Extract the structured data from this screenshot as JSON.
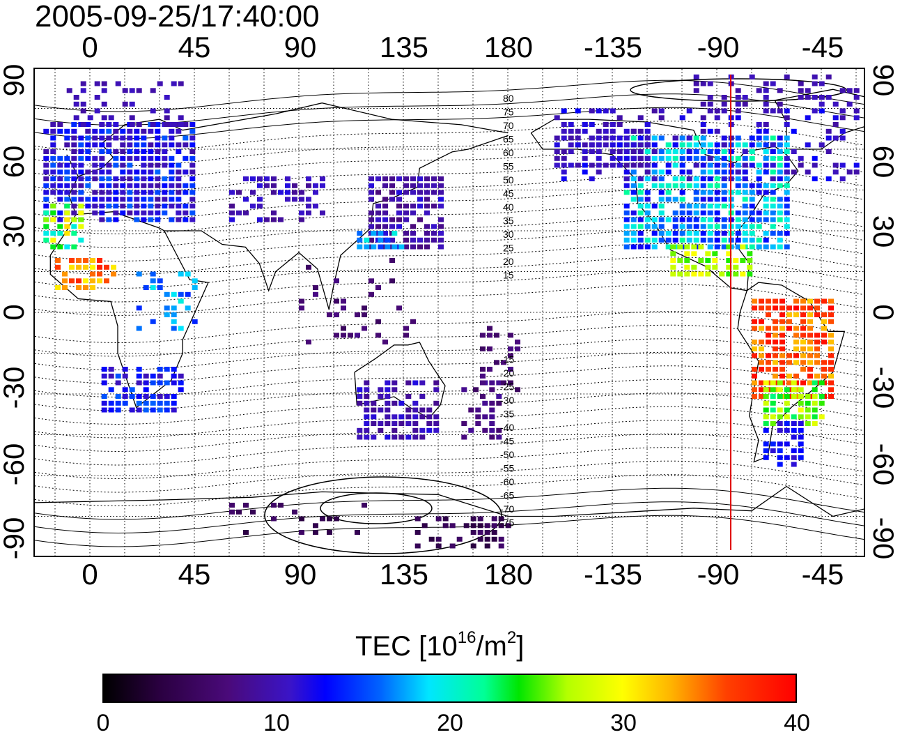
{
  "title": "2005-09-25/17:40:00",
  "lon_labels_top": [
    "0",
    "45",
    "90",
    "135",
    "180",
    "-135",
    "-90",
    "-45"
  ],
  "lon_labels_bottom": [
    "0",
    "45",
    "90",
    "135",
    "180",
    "-135",
    "-90",
    "-45"
  ],
  "lat_labels_left": [
    "90",
    "60",
    "30",
    "0",
    "-30",
    "-60",
    "-90"
  ],
  "lat_labels_right": [
    "90",
    "60",
    "30",
    "0",
    "-30",
    "-60",
    "-90"
  ],
  "contour_labels_north": [
    "80",
    "75",
    "70",
    "65",
    "60",
    "55",
    "50",
    "45",
    "40",
    "35",
    "30",
    "25",
    "20",
    "15"
  ],
  "contour_labels_south": [
    "-15",
    "-20",
    "-25",
    "-30",
    "-35",
    "-40",
    "-45",
    "-50",
    "-55",
    "-60",
    "-65",
    "-70",
    "-75"
  ],
  "colorbar": {
    "title_prefix": "TEC  [10",
    "title_exp1": "16",
    "title_mid": "/m",
    "title_exp2": "2",
    "title_suffix": "]",
    "ticks": [
      "0",
      "10",
      "20",
      "30",
      "40"
    ],
    "range": [
      0,
      40
    ],
    "colormap": "jet-like (black–purple–blue–cyan–green–yellow–red)"
  },
  "terminator_line": {
    "color": "#e00000",
    "longitude": -84
  },
  "colors": {
    "contour": "#000000",
    "grid": "#000000",
    "terminator": "#e00000"
  }
}
